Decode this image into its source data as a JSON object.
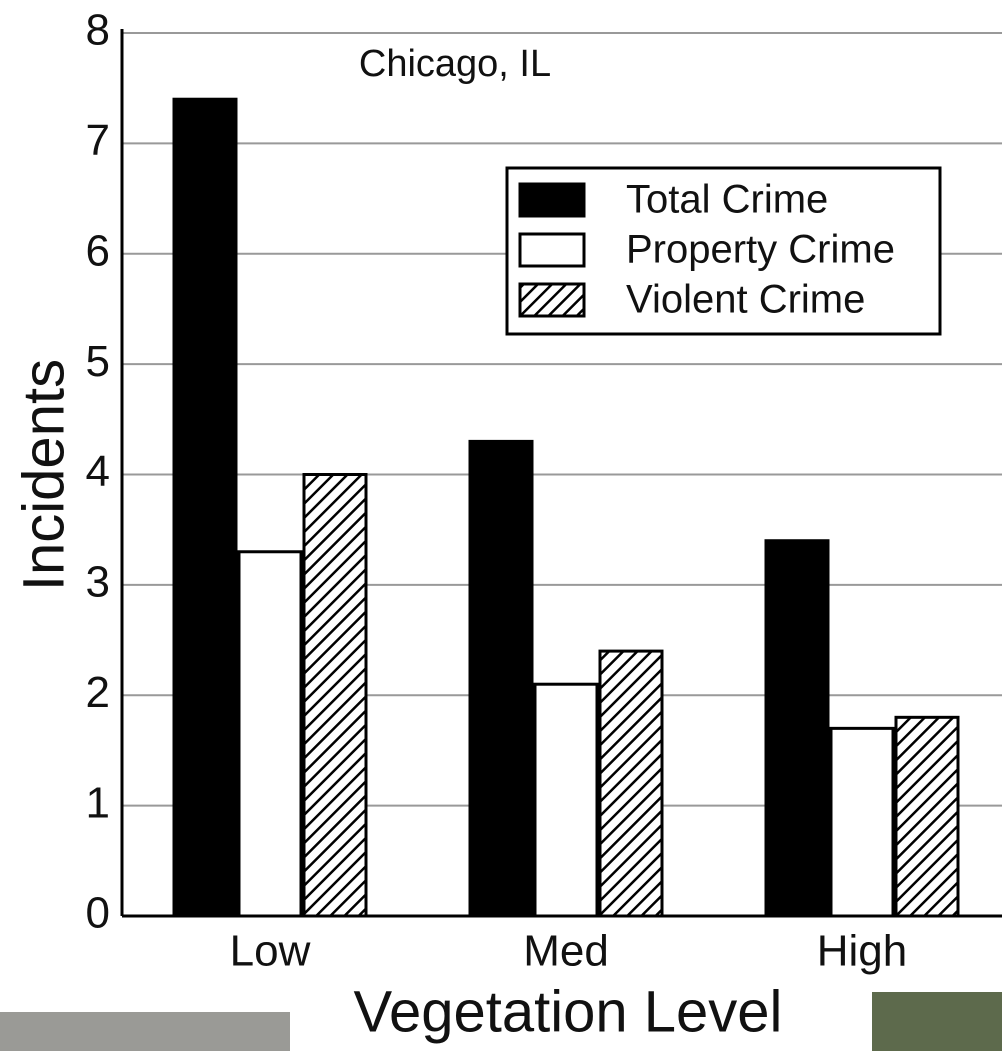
{
  "chart_data": {
    "type": "bar",
    "annotation": "Chicago, IL",
    "x_label": "Vegetation Level",
    "y_label": "Incidents",
    "categories": [
      "Low",
      "Med",
      "High"
    ],
    "series": [
      {
        "name": "Total Crime",
        "color": "#000000",
        "values": [
          7.4,
          4.3,
          3.4
        ]
      },
      {
        "name": "Property Crime",
        "color": "#ffffff",
        "values": [
          3.3,
          2.1,
          1.7
        ]
      },
      {
        "name": "Violent Crime",
        "color": "#ffffff",
        "hatch": true,
        "values": [
          4.0,
          2.4,
          1.8
        ]
      }
    ],
    "ylim": [
      0,
      8
    ],
    "yticks": [
      0,
      1,
      2,
      3,
      4,
      5,
      6,
      7,
      8
    ],
    "grid": true
  }
}
